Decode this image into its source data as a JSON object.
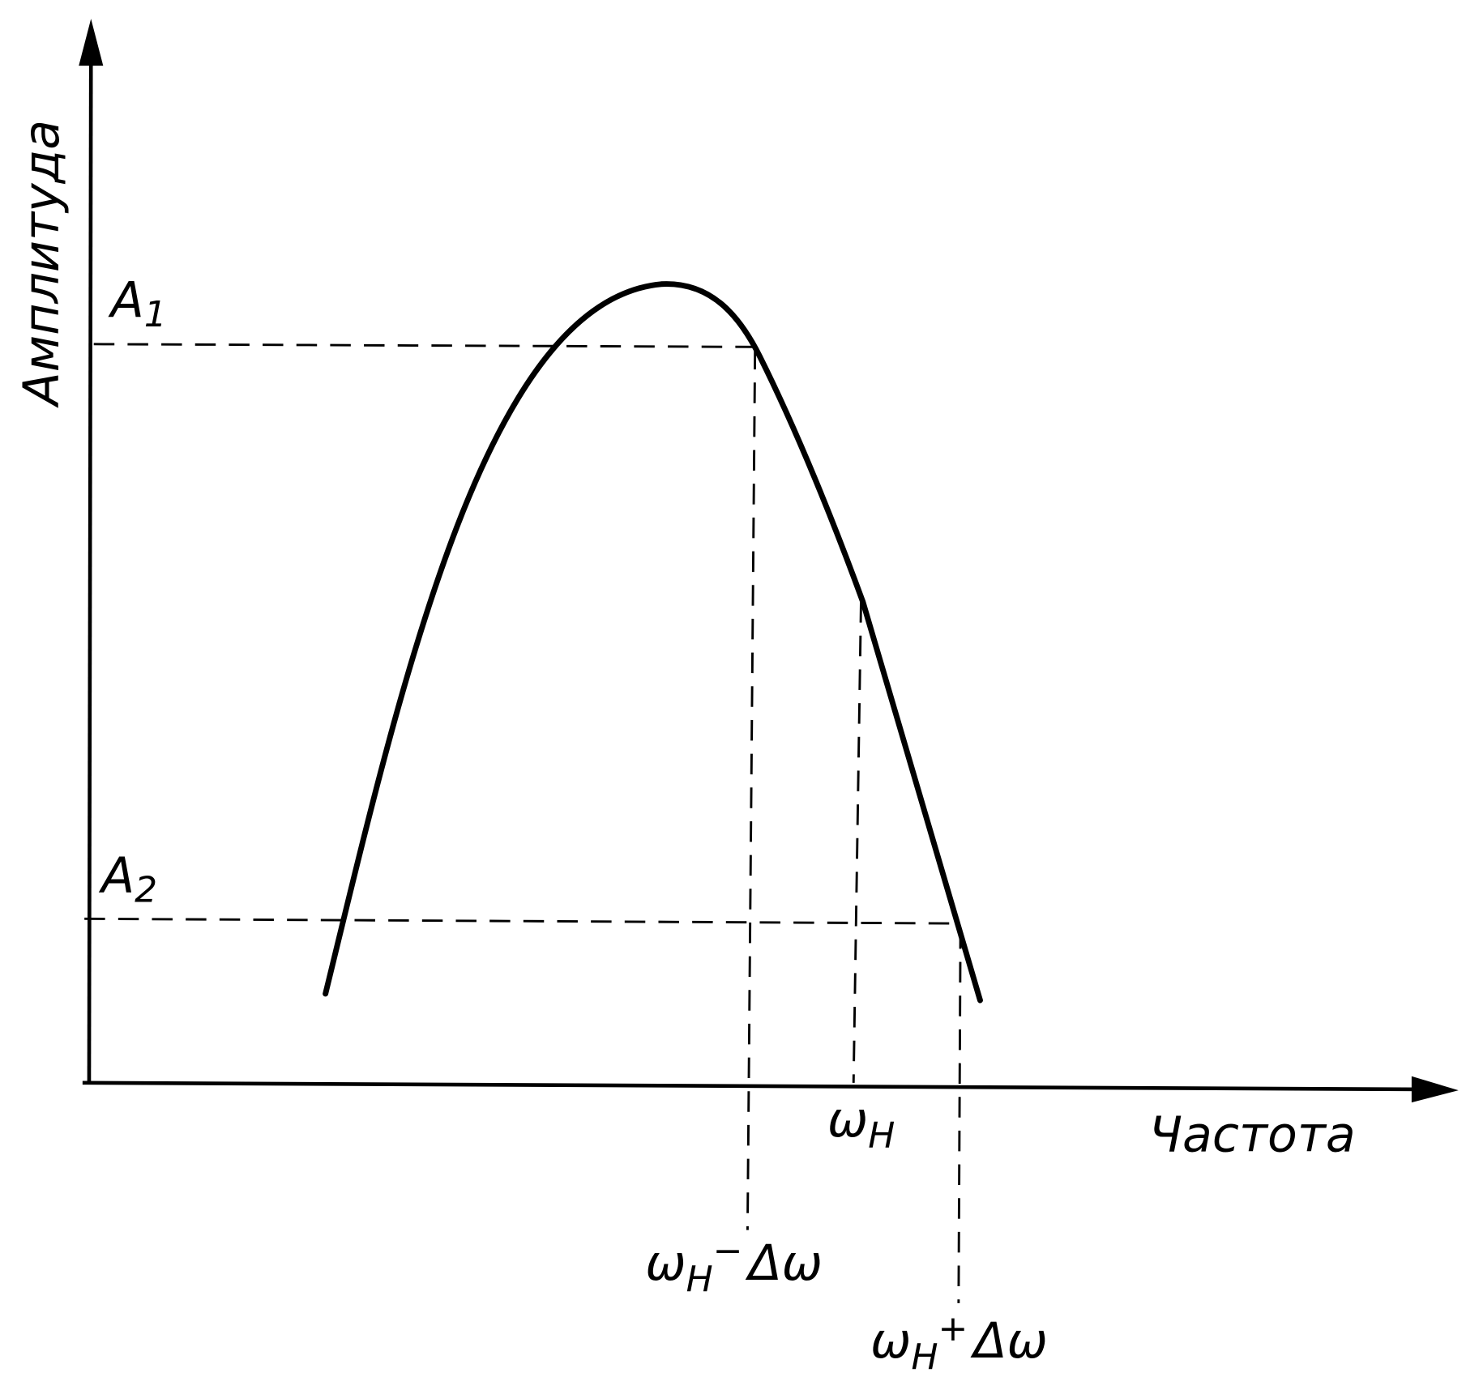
{
  "axes": {
    "y_label": "Амплитуда",
    "x_label": "Частота"
  },
  "levels": [
    {
      "symbol": "A",
      "index": "1"
    },
    {
      "symbol": "A",
      "index": "2"
    }
  ],
  "frequencies": [
    {
      "symbol": "ω",
      "index": "H"
    },
    {
      "symbol": "ω",
      "index": "H",
      "sign": "−",
      "delta": "Δω"
    },
    {
      "symbol": "ω",
      "index": "H",
      "sign": "+",
      "delta": "Δω"
    }
  ]
}
